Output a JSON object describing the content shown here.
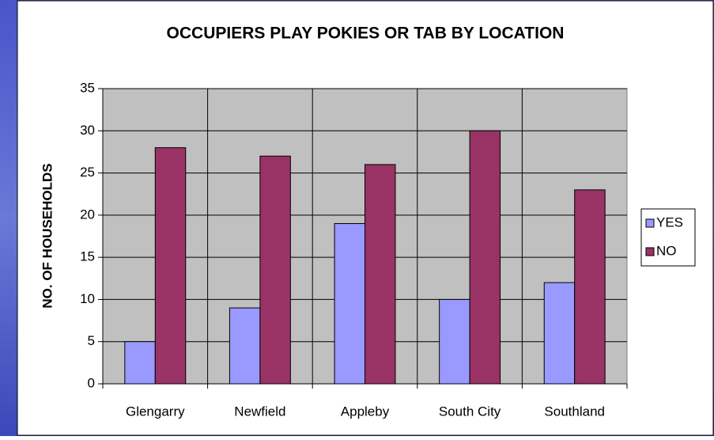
{
  "chart_data": {
    "type": "bar",
    "title": "OCCUPIERS PLAY POKIES OR TAB BY LOCATION",
    "y_label": "NO. OF HOUSEHOLDS",
    "categories": [
      "Glengarry",
      "Newfield",
      "Appleby",
      "South City",
      "Southland"
    ],
    "series": [
      {
        "name": "YES",
        "color": "#9999ff",
        "values": [
          5,
          9,
          19,
          10,
          12
        ]
      },
      {
        "name": "NO",
        "color": "#993366",
        "values": [
          28,
          27,
          26,
          30,
          23
        ]
      }
    ],
    "ylim": [
      0,
      35
    ],
    "yticks": [
      0,
      5,
      10,
      15,
      20,
      25,
      30,
      35
    ],
    "grid": true,
    "legend": "right"
  }
}
